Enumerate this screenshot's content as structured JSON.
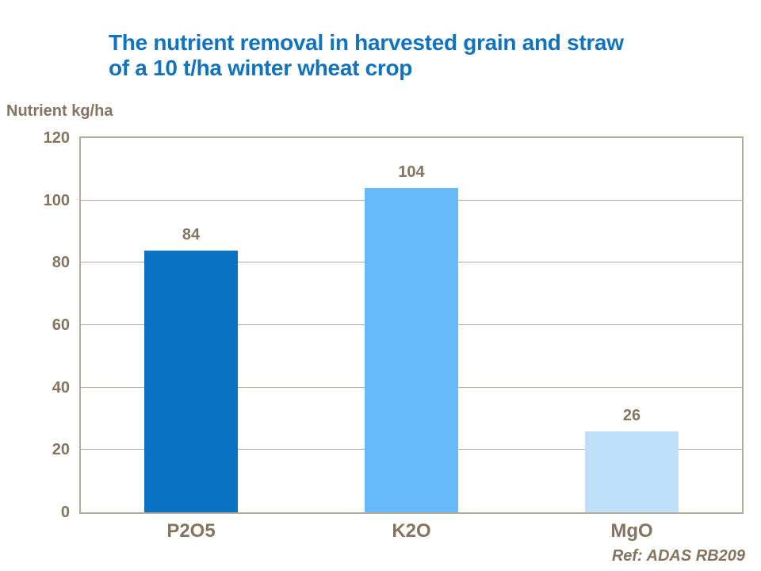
{
  "slide": {
    "background": "#ffffff"
  },
  "title": {
    "line1": "The nutrient removal in harvested grain and straw",
    "line2": "of a 10 t/ha winter wheat crop",
    "color": "#1173be"
  },
  "axis": {
    "text_color": "#847460"
  },
  "footer": {
    "ref": "Ref: ADAS RB209"
  },
  "chart_data": {
    "type": "bar",
    "title": "The nutrient removal in harvested grain and straw of a 10 t/ha winter wheat crop",
    "ylabel": "Nutrient kg/ha",
    "xlabel": "",
    "categories": [
      "P2O5",
      "K2O",
      "MgO"
    ],
    "values": [
      84,
      104,
      26
    ],
    "value_labels": [
      "84",
      "104",
      "26"
    ],
    "bar_colors": [
      "#0a72c2",
      "#66bafa",
      "#bee0fb"
    ],
    "ylim": [
      0,
      120
    ],
    "ytick_step": 20,
    "yticks": [
      0,
      20,
      40,
      60,
      80,
      100,
      120
    ],
    "grid": true,
    "grid_color": "#b5ab9c",
    "plot_border_color": "#b5ab9c",
    "legend": false,
    "annotation": "Ref: ADAS RB209"
  }
}
